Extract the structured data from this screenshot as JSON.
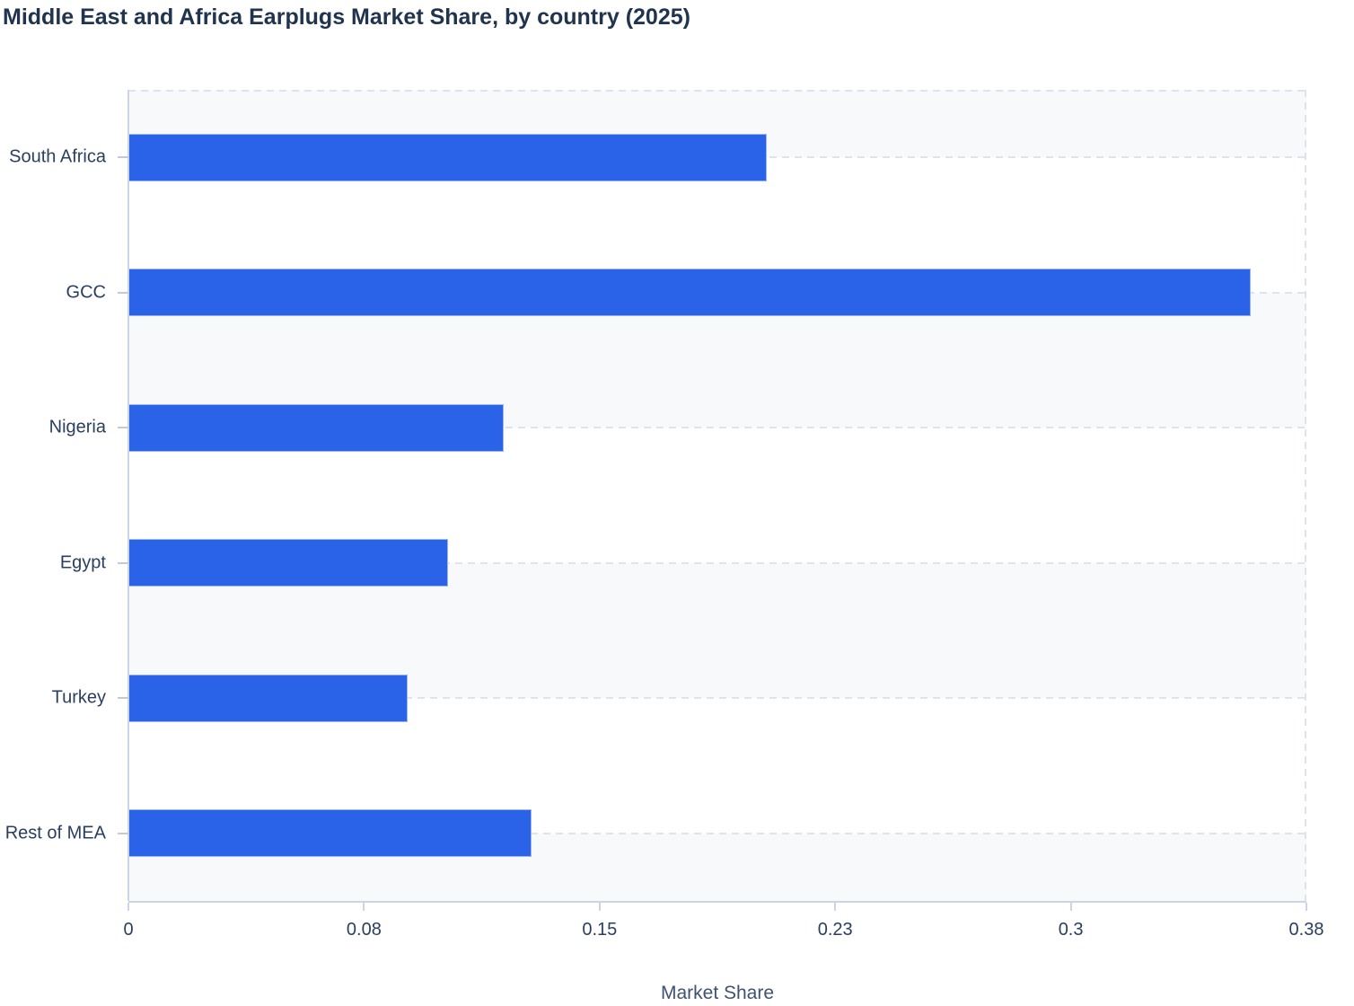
{
  "title": "Middle East and Africa Earplugs Market Share, by country (2025)",
  "chart_data": {
    "type": "bar",
    "orientation": "horizontal",
    "title": "Middle East and Africa Earplugs Market Share, by country (2025)",
    "categories": [
      "South Africa",
      "GCC",
      "Nigeria",
      "Egypt",
      "Turkey",
      "Rest of MEA"
    ],
    "values": [
      0.206,
      0.362,
      0.121,
      0.103,
      0.09,
      0.13
    ],
    "xlabel": "Market Share",
    "ylabel": "",
    "xlim": [
      0,
      0.38
    ],
    "x_tick_labels": [
      "0",
      "0.08",
      "0.15",
      "0.23",
      "0.3",
      "0.38"
    ],
    "grid": "dashed horizontal lines at category centers; dashed top and right plot border; alternating light band shading",
    "legend_position": "none",
    "colors": {
      "bar": "#2a63e8",
      "bar_border": "#9db5ee",
      "band": "#f8f9fb",
      "gridline": "#e0e3e9",
      "axis_line": "#ccd4e8",
      "tick_mark": "#c3c9d5",
      "tick_text": "#2a3f5f",
      "title_text": "#20344f",
      "axis_title_text": "#3f5270"
    }
  }
}
